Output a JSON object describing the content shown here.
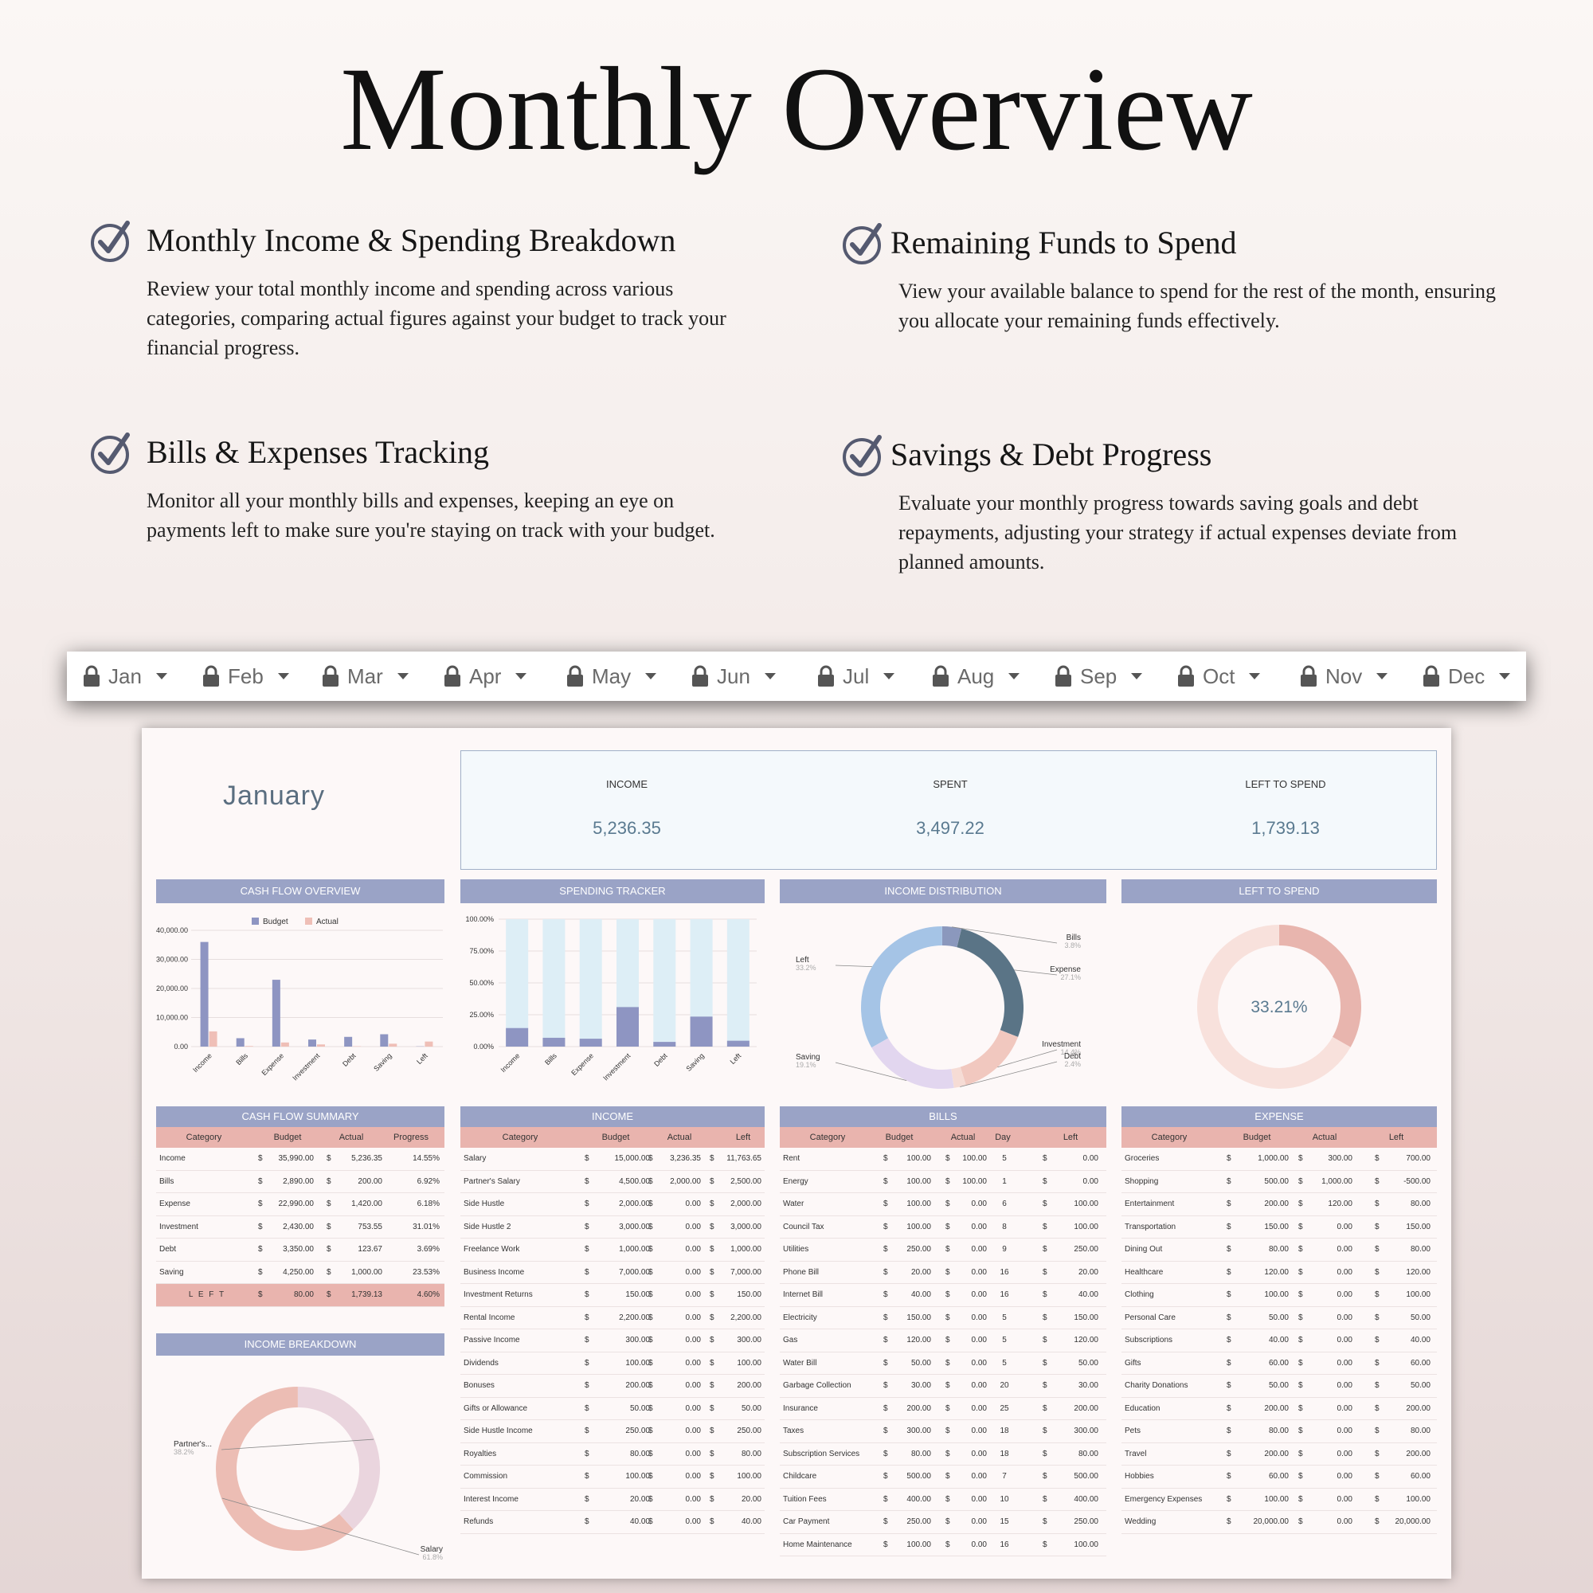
{
  "title": "Monthly Overview",
  "features": [
    {
      "heading": "Monthly Income & Spending Breakdown",
      "text": "Review your total monthly income and spending across various categories, comparing actual figures against your budget to track your financial progress."
    },
    {
      "heading": "Remaining Funds to Spend",
      "text": "View your available balance to spend for the rest of the month, ensuring you allocate your remaining funds effectively."
    },
    {
      "heading": "Bills & Expenses Tracking",
      "text": "Monitor all your monthly bills and expenses, keeping an eye on payments left to make sure you're staying on track with your budget."
    },
    {
      "heading": "Savings & Debt Progress",
      "text": "Evaluate your monthly progress towards saving goals and debt repayments, adjusting your strategy if actual expenses deviate from planned amounts."
    }
  ],
  "months": [
    "Jan",
    "Feb",
    "Mar",
    "Apr",
    "May",
    "Jun",
    "Jul",
    "Aug",
    "Sep",
    "Oct",
    "Nov",
    "Dec"
  ],
  "sheet": {
    "month": "January",
    "kpis": [
      {
        "label": "INCOME",
        "value": "5,236.35"
      },
      {
        "label": "SPENT",
        "value": "3,497.22"
      },
      {
        "label": "LEFT TO SPEND",
        "value": "1,739.13"
      }
    ],
    "headers": {
      "cash_flow_overview": "CASH FLOW OVERVIEW",
      "spending_tracker": "SPENDING TRACKER",
      "income_distribution": "INCOME DISTRIBUTION",
      "left_to_spend": "LEFT TO SPEND",
      "cash_flow_summary": "CASH FLOW SUMMARY",
      "income": "INCOME",
      "bills": "BILLS",
      "expense": "EXPENSE",
      "income_breakdown": "INCOME BREAKDOWN"
    },
    "left_to_spend_pct": "33.21%",
    "summary": {
      "columns": [
        "Category",
        "Budget",
        "Actual",
        "Progress"
      ],
      "rows": [
        [
          "Income",
          "$",
          "35,990.00",
          "$",
          "5,236.35",
          "14.55%"
        ],
        [
          "Bills",
          "$",
          "2,890.00",
          "$",
          "200.00",
          "6.92%"
        ],
        [
          "Expense",
          "$",
          "22,990.00",
          "$",
          "1,420.00",
          "6.18%"
        ],
        [
          "Investment",
          "$",
          "2,430.00",
          "$",
          "753.55",
          "31.01%"
        ],
        [
          "Debt",
          "$",
          "3,350.00",
          "$",
          "123.67",
          "3.69%"
        ],
        [
          "Saving",
          "$",
          "4,250.00",
          "$",
          "1,000.00",
          "23.53%"
        ],
        [
          "L E F T",
          "$",
          "80.00",
          "$",
          "1,739.13",
          "4.60%"
        ]
      ]
    },
    "income_table": {
      "columns": [
        "Category",
        "Budget",
        "Actual",
        "Left"
      ],
      "rows": [
        [
          "Salary",
          "$",
          "15,000.00",
          "$",
          "3,236.35",
          "$",
          "11,763.65"
        ],
        [
          "Partner's Salary",
          "$",
          "4,500.00",
          "$",
          "2,000.00",
          "$",
          "2,500.00"
        ],
        [
          "Side Hustle",
          "$",
          "2,000.00",
          "$",
          "0.00",
          "$",
          "2,000.00"
        ],
        [
          "Side Hustle 2",
          "$",
          "3,000.00",
          "$",
          "0.00",
          "$",
          "3,000.00"
        ],
        [
          "Freelance Work",
          "$",
          "1,000.00",
          "$",
          "0.00",
          "$",
          "1,000.00"
        ],
        [
          "Business Income",
          "$",
          "7,000.00",
          "$",
          "0.00",
          "$",
          "7,000.00"
        ],
        [
          "Investment Returns",
          "$",
          "150.00",
          "$",
          "0.00",
          "$",
          "150.00"
        ],
        [
          "Rental Income",
          "$",
          "2,200.00",
          "$",
          "0.00",
          "$",
          "2,200.00"
        ],
        [
          "Passive Income",
          "$",
          "300.00",
          "$",
          "0.00",
          "$",
          "300.00"
        ],
        [
          "Dividends",
          "$",
          "100.00",
          "$",
          "0.00",
          "$",
          "100.00"
        ],
        [
          "Bonuses",
          "$",
          "200.00",
          "$",
          "0.00",
          "$",
          "200.00"
        ],
        [
          "Gifts or Allowance",
          "$",
          "50.00",
          "$",
          "0.00",
          "$",
          "50.00"
        ],
        [
          "Side Hustle Income",
          "$",
          "250.00",
          "$",
          "0.00",
          "$",
          "250.00"
        ],
        [
          "Royalties",
          "$",
          "80.00",
          "$",
          "0.00",
          "$",
          "80.00"
        ],
        [
          "Commission",
          "$",
          "100.00",
          "$",
          "0.00",
          "$",
          "100.00"
        ],
        [
          "Interest Income",
          "$",
          "20.00",
          "$",
          "0.00",
          "$",
          "20.00"
        ],
        [
          "Refunds",
          "$",
          "40.00",
          "$",
          "0.00",
          "$",
          "40.00"
        ]
      ]
    },
    "bills_table": {
      "columns": [
        "Category",
        "Budget",
        "Actual",
        "Day",
        "Left"
      ],
      "rows": [
        [
          "Rent",
          "$",
          "100.00",
          "$",
          "100.00",
          "5",
          "$",
          "0.00"
        ],
        [
          "Energy",
          "$",
          "100.00",
          "$",
          "100.00",
          "1",
          "$",
          "0.00"
        ],
        [
          "Water",
          "$",
          "100.00",
          "$",
          "0.00",
          "6",
          "$",
          "100.00"
        ],
        [
          "Council Tax",
          "$",
          "100.00",
          "$",
          "0.00",
          "8",
          "$",
          "100.00"
        ],
        [
          "Utilities",
          "$",
          "250.00",
          "$",
          "0.00",
          "9",
          "$",
          "250.00"
        ],
        [
          "Phone Bill",
          "$",
          "20.00",
          "$",
          "0.00",
          "16",
          "$",
          "20.00"
        ],
        [
          "Internet Bill",
          "$",
          "40.00",
          "$",
          "0.00",
          "16",
          "$",
          "40.00"
        ],
        [
          "Electricity",
          "$",
          "150.00",
          "$",
          "0.00",
          "5",
          "$",
          "150.00"
        ],
        [
          "Gas",
          "$",
          "120.00",
          "$",
          "0.00",
          "5",
          "$",
          "120.00"
        ],
        [
          "Water Bill",
          "$",
          "50.00",
          "$",
          "0.00",
          "5",
          "$",
          "50.00"
        ],
        [
          "Garbage Collection",
          "$",
          "30.00",
          "$",
          "0.00",
          "20",
          "$",
          "30.00"
        ],
        [
          "Insurance",
          "$",
          "200.00",
          "$",
          "0.00",
          "25",
          "$",
          "200.00"
        ],
        [
          "Taxes",
          "$",
          "300.00",
          "$",
          "0.00",
          "18",
          "$",
          "300.00"
        ],
        [
          "Subscription Services",
          "$",
          "80.00",
          "$",
          "0.00",
          "18",
          "$",
          "80.00"
        ],
        [
          "Childcare",
          "$",
          "500.00",
          "$",
          "0.00",
          "7",
          "$",
          "500.00"
        ],
        [
          "Tuition Fees",
          "$",
          "400.00",
          "$",
          "0.00",
          "10",
          "$",
          "400.00"
        ],
        [
          "Car Payment",
          "$",
          "250.00",
          "$",
          "0.00",
          "15",
          "$",
          "250.00"
        ],
        [
          "Home Maintenance",
          "$",
          "100.00",
          "$",
          "0.00",
          "16",
          "$",
          "100.00"
        ]
      ]
    },
    "expense_table": {
      "columns": [
        "Category",
        "Budget",
        "Actual",
        "Left"
      ],
      "rows": [
        [
          "Groceries",
          "$",
          "1,000.00",
          "$",
          "300.00",
          "$",
          "700.00"
        ],
        [
          "Shopping",
          "$",
          "500.00",
          "$",
          "1,000.00",
          "$",
          "-500.00"
        ],
        [
          "Entertainment",
          "$",
          "200.00",
          "$",
          "120.00",
          "$",
          "80.00"
        ],
        [
          "Transportation",
          "$",
          "150.00",
          "$",
          "0.00",
          "$",
          "150.00"
        ],
        [
          "Dining Out",
          "$",
          "80.00",
          "$",
          "0.00",
          "$",
          "80.00"
        ],
        [
          "Healthcare",
          "$",
          "120.00",
          "$",
          "0.00",
          "$",
          "120.00"
        ],
        [
          "Clothing",
          "$",
          "100.00",
          "$",
          "0.00",
          "$",
          "100.00"
        ],
        [
          "Personal Care",
          "$",
          "50.00",
          "$",
          "0.00",
          "$",
          "50.00"
        ],
        [
          "Subscriptions",
          "$",
          "40.00",
          "$",
          "0.00",
          "$",
          "40.00"
        ],
        [
          "Gifts",
          "$",
          "60.00",
          "$",
          "0.00",
          "$",
          "60.00"
        ],
        [
          "Charity Donations",
          "$",
          "50.00",
          "$",
          "0.00",
          "$",
          "50.00"
        ],
        [
          "Education",
          "$",
          "200.00",
          "$",
          "0.00",
          "$",
          "200.00"
        ],
        [
          "Pets",
          "$",
          "80.00",
          "$",
          "0.00",
          "$",
          "80.00"
        ],
        [
          "Travel",
          "$",
          "200.00",
          "$",
          "0.00",
          "$",
          "200.00"
        ],
        [
          "Hobbies",
          "$",
          "60.00",
          "$",
          "0.00",
          "$",
          "60.00"
        ],
        [
          "Emergency Expenses",
          "$",
          "100.00",
          "$",
          "0.00",
          "$",
          "100.00"
        ],
        [
          "Wedding",
          "$",
          "20,000.00",
          "$",
          "0.00",
          "$",
          "20,000.00"
        ]
      ]
    }
  },
  "colors": {
    "budget": "#8e95c2",
    "actual": "#efbfb7",
    "header": "#9aa3c6",
    "table_header": "#e9b4ae"
  },
  "chart_data": [
    {
      "type": "bar",
      "categories": [
        "Income",
        "Bills",
        "Expense",
        "Investment",
        "Debt",
        "Saving",
        "Left"
      ],
      "series": [
        {
          "name": "Budget",
          "values": [
            35990,
            2890,
            22990,
            2430,
            3350,
            4250,
            80
          ]
        },
        {
          "name": "Actual",
          "values": [
            5236.35,
            200,
            1420,
            753.55,
            123.67,
            1000,
            1739.13
          ]
        }
      ],
      "ylim": [
        0,
        40000
      ],
      "yticks": [
        "0.00",
        "10,000.00",
        "20,000.00",
        "30,000.00",
        "40,000.00"
      ],
      "legend": "top"
    },
    {
      "type": "bar",
      "stacked_percent": true,
      "categories": [
        "Income",
        "Bills",
        "Expense",
        "Investment",
        "Debt",
        "Saving",
        "Left"
      ],
      "values": [
        14.55,
        6.92,
        6.18,
        31.01,
        3.69,
        23.53,
        4.6
      ],
      "ylim": [
        0,
        100
      ],
      "yticks": [
        "0.00%",
        "25.00%",
        "50.00%",
        "75.00%",
        "100.00%"
      ]
    },
    {
      "type": "pie",
      "donut": true,
      "labels": [
        "Bills",
        "Expense",
        "Investment",
        "Debt",
        "Saving",
        "Left"
      ],
      "label_text": [
        "3.8%",
        "27.1%",
        "14.4%",
        "2.4%",
        "19.1%",
        "33.2%"
      ],
      "values": [
        3.8,
        27.1,
        14.4,
        2.4,
        19.1,
        33.2
      ],
      "colors": [
        "#8b98bd",
        "#5a7486",
        "#f1c8bf",
        "#f6dcd5",
        "#e2d6ef",
        "#a5c4e6"
      ]
    },
    {
      "type": "pie",
      "donut": true,
      "labels": [
        "Left",
        "Spent"
      ],
      "values": [
        33.21,
        66.79
      ],
      "colors": [
        "#e8b5ae",
        "#f8e1dc"
      ]
    },
    {
      "type": "pie",
      "donut": true,
      "labels": [
        "Partner's...",
        "Salary"
      ],
      "label_text": [
        "38.2%",
        "61.8%"
      ],
      "values": [
        38.2,
        61.8
      ],
      "colors": [
        "#ead5de",
        "#ecbdb4"
      ]
    }
  ]
}
